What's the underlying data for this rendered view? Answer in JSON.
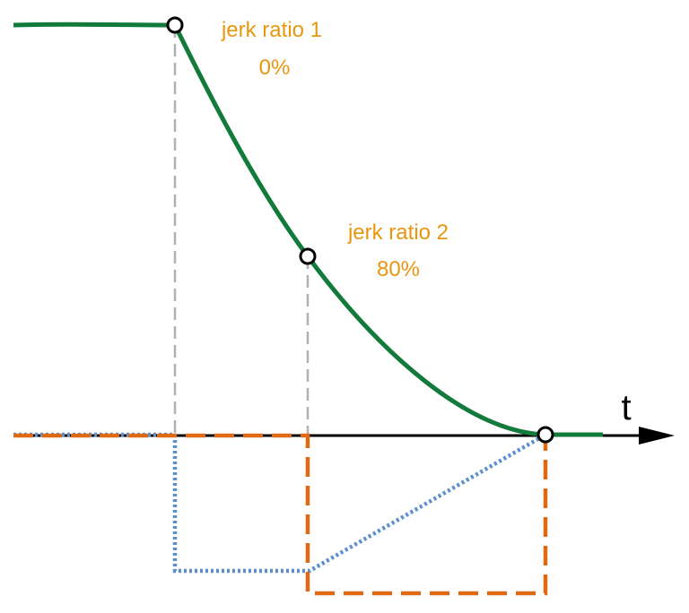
{
  "labels": [
    {
      "title": "jerk ratio 1",
      "value": "0%"
    },
    {
      "title": "jerk ratio 2",
      "value": "80%"
    }
  ],
  "axis": {
    "label": "t"
  }
}
